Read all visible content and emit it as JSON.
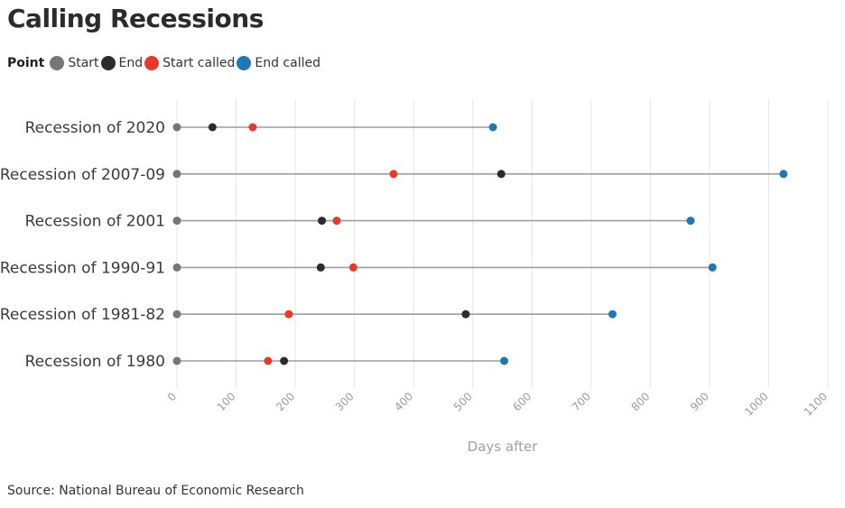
{
  "chart_data": {
    "type": "dot-range",
    "title": "Calling Recessions",
    "legend_title": "Point",
    "legend": [
      {
        "label": "Start",
        "color": "#767676"
      },
      {
        "label": "End",
        "color": "#2b2b2b"
      },
      {
        "label": "Start called",
        "color": "#e8392a"
      },
      {
        "label": "End called",
        "color": "#1f77b4"
      }
    ],
    "xlabel": "Days after",
    "xlim": [
      0,
      1100
    ],
    "xticks": [
      0,
      100,
      200,
      300,
      400,
      500,
      600,
      700,
      800,
      900,
      1000,
      1100
    ],
    "grid": true,
    "rows": [
      {
        "label": "Recession of 2020",
        "start": 0,
        "end": 60,
        "start_called": 128,
        "end_called": 534
      },
      {
        "label": "Recession of 2007-09",
        "start": 0,
        "end": 548,
        "start_called": 366,
        "end_called": 1025
      },
      {
        "label": "Recession of 2001",
        "start": 0,
        "end": 245,
        "start_called": 270,
        "end_called": 868
      },
      {
        "label": "Recession of 1990-91",
        "start": 0,
        "end": 243,
        "start_called": 298,
        "end_called": 905
      },
      {
        "label": "Recession of 1981-82",
        "start": 0,
        "end": 488,
        "start_called": 189,
        "end_called": 736
      },
      {
        "label": "Recession of 1980",
        "start": 0,
        "end": 181,
        "start_called": 154,
        "end_called": 553
      }
    ]
  },
  "source": "Source: National Bureau of Economic Research"
}
